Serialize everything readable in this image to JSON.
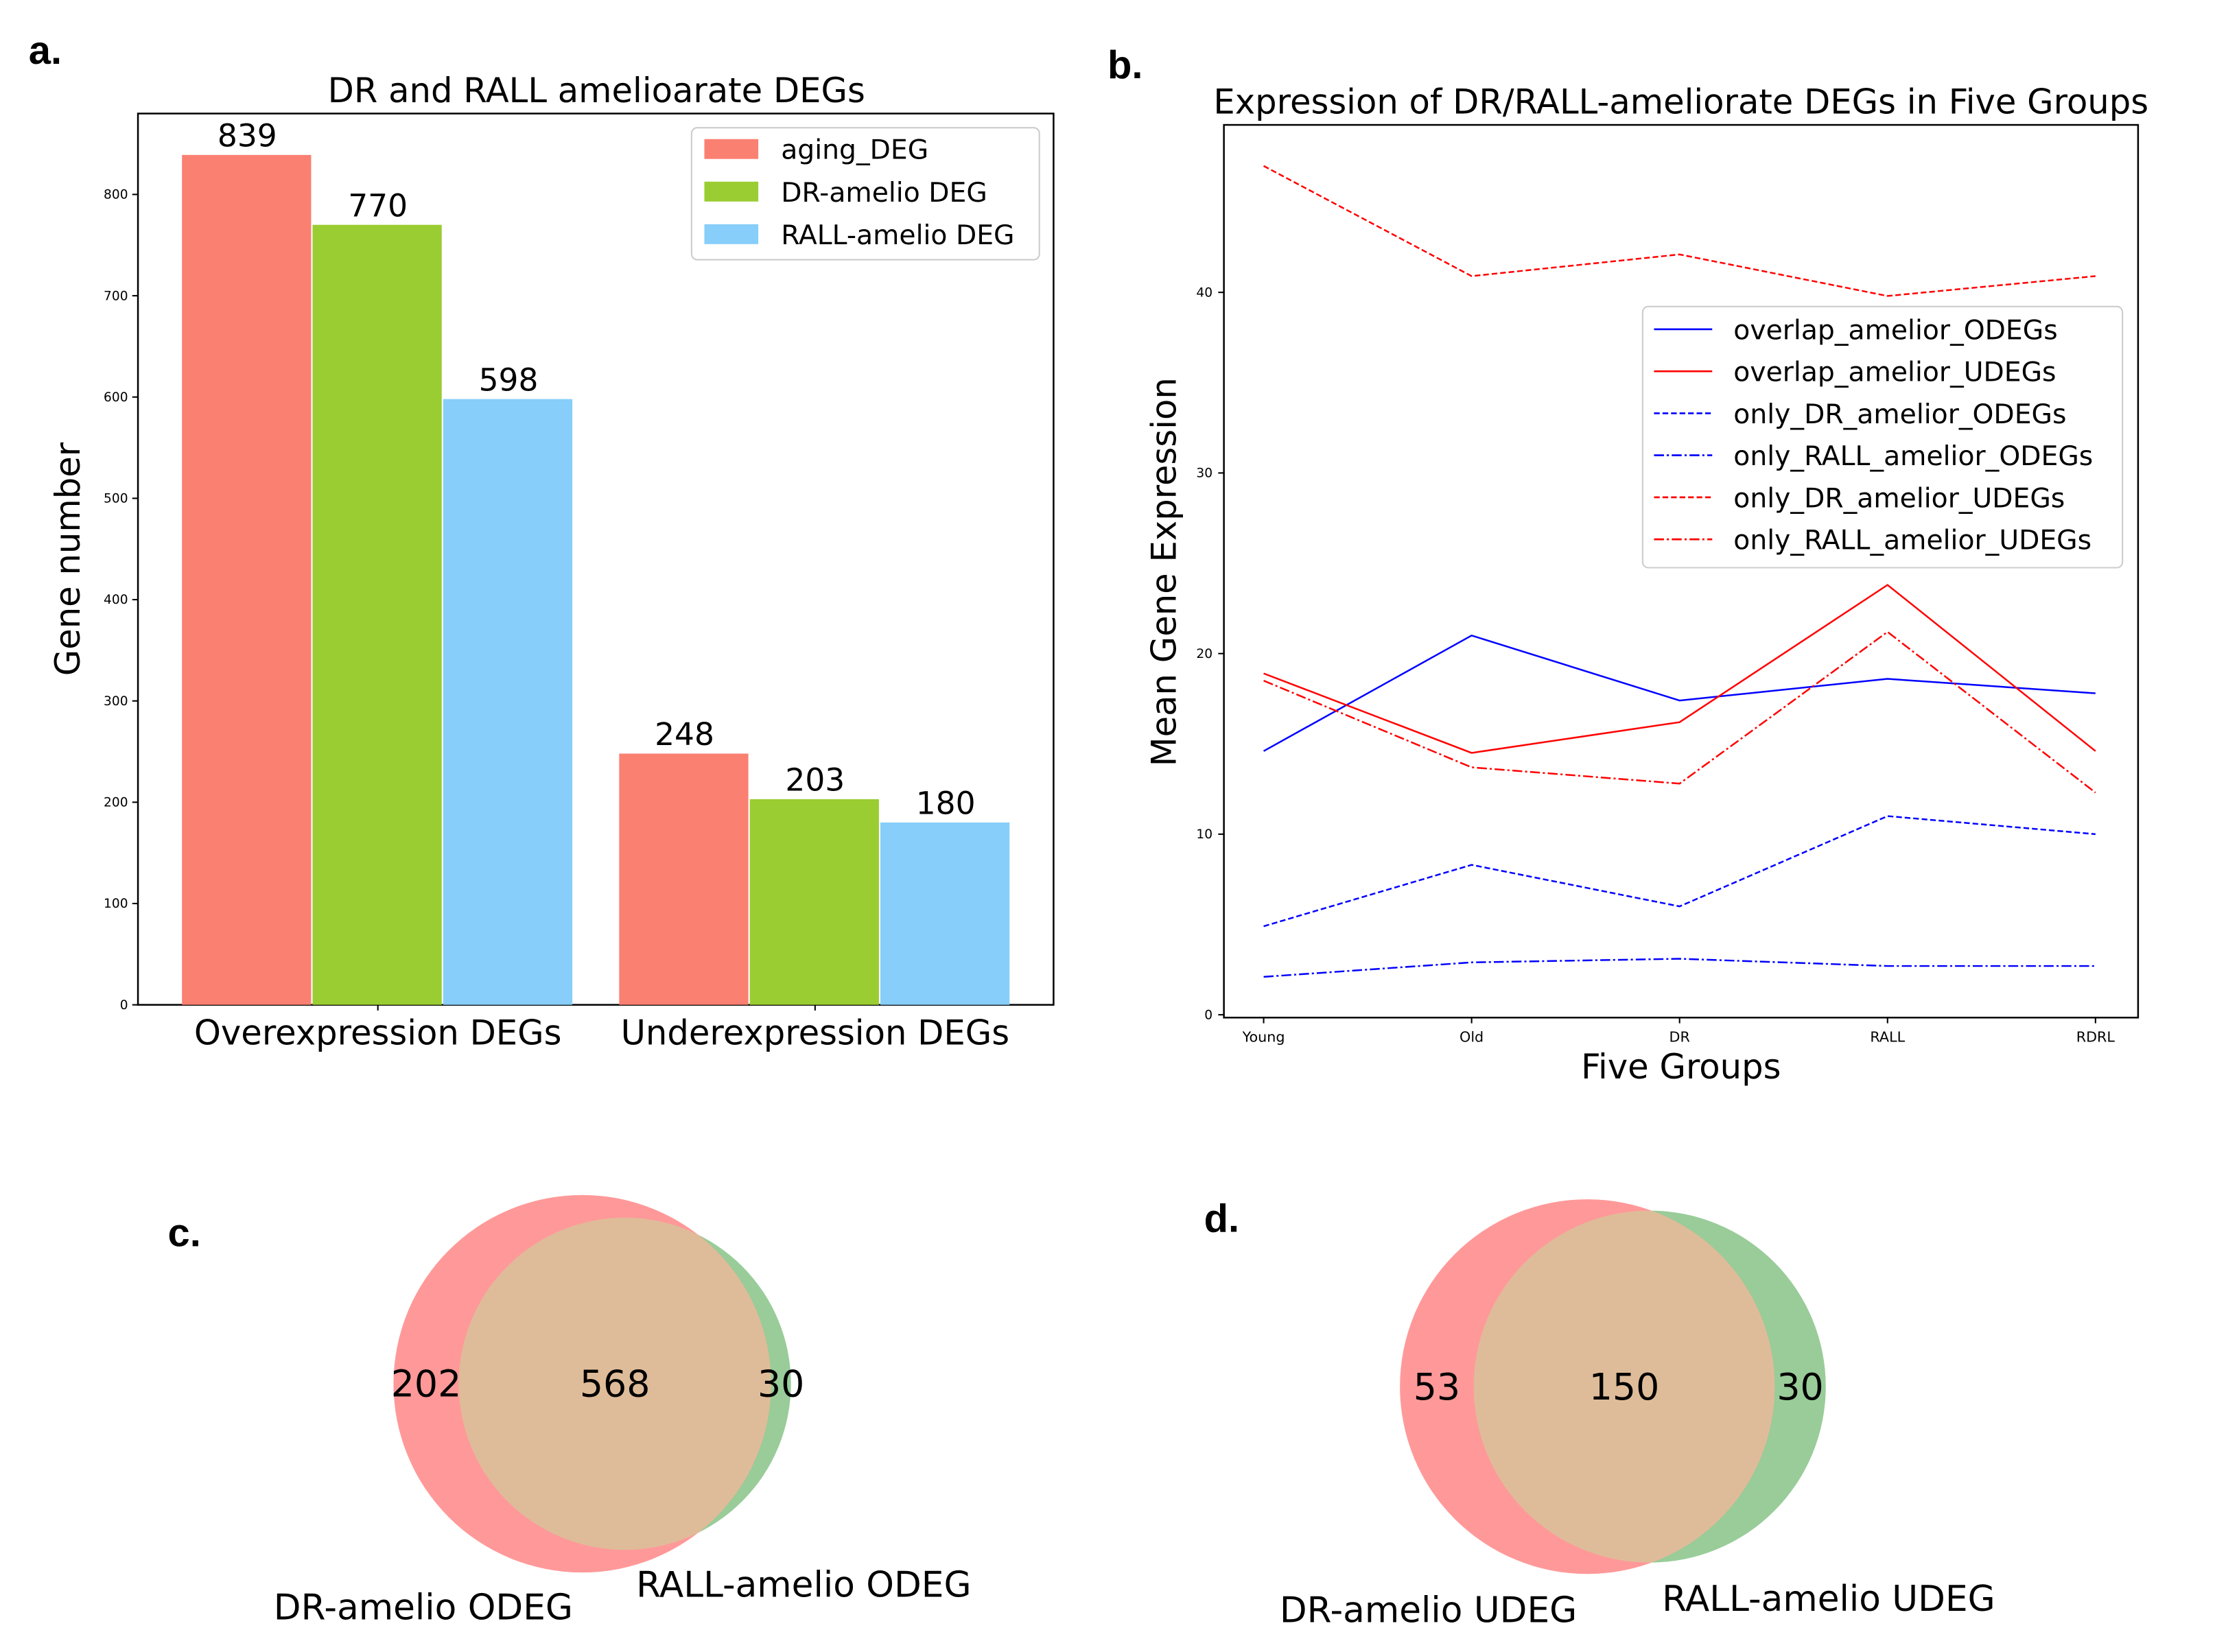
{
  "panels": {
    "a": "a.",
    "b": "b.",
    "c": "c.",
    "d": "d."
  },
  "chart_data": [
    {
      "type": "bar",
      "title": "DR and RALL amelioarate DEGs",
      "xlabel": "",
      "ylabel": "Gene number",
      "categories": [
        "Overexpression DEGs",
        "Underexpression DEGs"
      ],
      "series": [
        {
          "name": "aging_DEG",
          "values": [
            839,
            248
          ],
          "color": "#fa8072"
        },
        {
          "name": "DR-amelio DEG",
          "values": [
            770,
            203
          ],
          "color": "#9acd32"
        },
        {
          "name": "RALL-amelio DEG",
          "values": [
            598,
            180
          ],
          "color": "#87cefa"
        }
      ],
      "yticks": [
        0,
        100,
        200,
        300,
        400,
        500,
        600,
        700,
        800
      ],
      "ylim": [
        0,
        880
      ],
      "legend": "top-right",
      "grid": false
    },
    {
      "type": "line",
      "title": "Expression of DR/RALL-ameliorate DEGs in Five Groups",
      "xlabel": "Five Groups",
      "ylabel": "Mean Gene Expression",
      "categories": [
        "Young",
        "Old",
        "DR",
        "RALL",
        "RDRL"
      ],
      "yticks": [
        0,
        10,
        20,
        30,
        40
      ],
      "ylim": [
        0,
        49.4
      ],
      "legend": "upper-right",
      "grid": false,
      "series": [
        {
          "name": "overlap_amelior_ODEGs",
          "values": [
            14.6,
            21.0,
            17.4,
            18.6,
            17.8
          ],
          "color": "#0000ff",
          "style": "solid"
        },
        {
          "name": "overlap_amelior_UDEGs",
          "values": [
            18.9,
            14.5,
            16.2,
            23.8,
            14.6
          ],
          "color": "#ff0000",
          "style": "solid"
        },
        {
          "name": "only_DR_amelior_ODEGs",
          "values": [
            4.9,
            8.3,
            6.0,
            11.0,
            10.0
          ],
          "color": "#0000ff",
          "style": "dashed"
        },
        {
          "name": "only_RALL_amelior_ODEGs",
          "values": [
            2.1,
            2.9,
            3.1,
            2.7,
            2.7
          ],
          "color": "#0000ff",
          "style": "dashdot"
        },
        {
          "name": "only_DR_amelior_UDEGs",
          "values": [
            47.0,
            40.9,
            42.1,
            39.8,
            40.9
          ],
          "color": "#ff0000",
          "style": "dashed"
        },
        {
          "name": "only_RALL_amelior_UDEGs",
          "values": [
            18.5,
            13.7,
            12.8,
            21.2,
            12.3
          ],
          "color": "#ff0000",
          "style": "dashdot"
        }
      ]
    },
    {
      "type": "venn",
      "sets": [
        "DR-amelio ODEG",
        "RALL-amelio ODEG"
      ],
      "only_a": 202,
      "both": 568,
      "only_b": 30,
      "colors": {
        "a": "#ff9999",
        "b": "#99cc99",
        "overlap": "#dfbc99"
      }
    },
    {
      "type": "venn",
      "sets": [
        "DR-amelio UDEG",
        "RALL-amelio UDEG"
      ],
      "only_a": 53,
      "both": 150,
      "only_b": 30,
      "colors": {
        "a": "#ff9999",
        "b": "#99cc99",
        "overlap": "#dfbc99"
      }
    }
  ]
}
